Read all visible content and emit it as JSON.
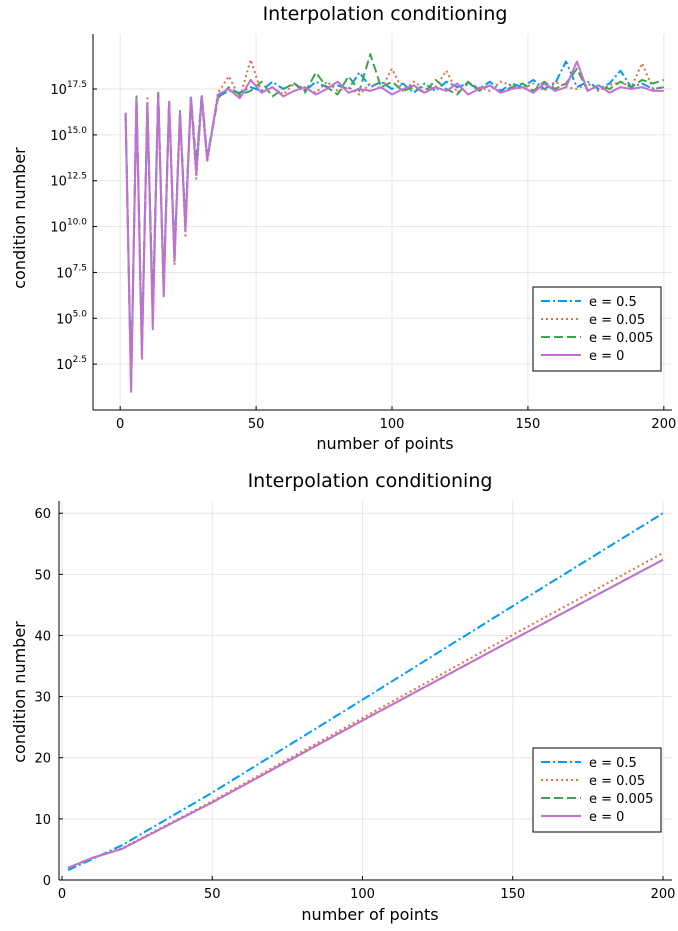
{
  "colors": {
    "e_0.5": "#009af9",
    "e_0.05": "#e26f46",
    "e_0.005": "#3ea44e",
    "e_0": "#c271d2"
  },
  "chart_data": [
    {
      "type": "line",
      "title": "Interpolation conditioning",
      "xlabel": "number of points",
      "ylabel": "condition number",
      "yscale": "log10",
      "xlim": [
        -10,
        203
      ],
      "ylim_log10": [
        0,
        20.5
      ],
      "xticks": [
        "0",
        "50",
        "100",
        "150",
        "200"
      ],
      "yticks": [
        {
          "base": "10",
          "exp": "2.5",
          "value": 2.5
        },
        {
          "base": "10",
          "exp": "5.0",
          "value": 5.0
        },
        {
          "base": "10",
          "exp": "7.5",
          "value": 7.5
        },
        {
          "base": "10",
          "exp": "10.0",
          "value": 10.0
        },
        {
          "base": "10",
          "exp": "12.5",
          "value": 12.5
        },
        {
          "base": "10",
          "exp": "15.0",
          "value": 15.0
        },
        {
          "base": "10",
          "exp": "17.5",
          "value": 17.5
        }
      ],
      "grid": true,
      "legend_position": "bottom-right",
      "series": [
        {
          "name": "e = 0.5",
          "style": "dashdot",
          "color_key": "e_0.5",
          "x": [
            2,
            4,
            6,
            8,
            10,
            12,
            14,
            16,
            18,
            20,
            22,
            24,
            26,
            28,
            30,
            32,
            36,
            40,
            44,
            48,
            52,
            56,
            60,
            64,
            68,
            72,
            76,
            80,
            84,
            88,
            92,
            96,
            100,
            104,
            108,
            112,
            116,
            120,
            124,
            128,
            132,
            136,
            140,
            144,
            148,
            152,
            156,
            160,
            164,
            168,
            172,
            176,
            180,
            184,
            188,
            192,
            196,
            200
          ],
          "y": [
            16.2,
            1.5,
            17.1,
            3.5,
            16.6,
            5.5,
            17.3,
            6.8,
            16.8,
            8.5,
            16.2,
            10.2,
            17.1,
            13.4,
            17.2,
            13.8,
            17.1,
            17.4,
            17.3,
            17.6,
            17.4,
            17.9,
            17.5,
            17.8,
            17.4,
            17.9,
            17.6,
            17.7,
            17.5,
            18.4,
            17.6,
            17.9,
            17.5,
            17.8,
            17.3,
            17.8,
            17.4,
            17.9,
            17.6,
            17.8,
            17.5,
            17.9,
            17.4,
            17.8,
            17.6,
            18.0,
            17.5,
            17.8,
            19.0,
            17.6,
            17.9,
            17.5,
            17.8,
            18.5,
            17.6,
            17.8,
            17.5,
            17.6
          ]
        },
        {
          "name": "e = 0.05",
          "style": "dotted",
          "color_key": "e_0.05",
          "x": [
            2,
            4,
            6,
            8,
            10,
            12,
            14,
            16,
            18,
            20,
            22,
            24,
            26,
            28,
            30,
            32,
            36,
            40,
            44,
            48,
            52,
            56,
            60,
            64,
            68,
            72,
            76,
            80,
            84,
            88,
            92,
            96,
            100,
            104,
            108,
            112,
            116,
            120,
            124,
            128,
            132,
            136,
            140,
            144,
            148,
            152,
            156,
            160,
            164,
            168,
            172,
            176,
            180,
            184,
            188,
            192,
            196,
            200
          ],
          "y": [
            16.0,
            1.0,
            16.9,
            2.8,
            17.0,
            4.8,
            17.2,
            6.3,
            16.7,
            7.9,
            16.1,
            9.5,
            16.9,
            12.6,
            16.9,
            13.5,
            17.3,
            18.2,
            17.0,
            19.1,
            17.3,
            17.6,
            17.2,
            17.8,
            17.5,
            17.3,
            17.9,
            17.4,
            17.6,
            17.2,
            17.8,
            17.5,
            18.6,
            17.4,
            17.9,
            17.5,
            17.6,
            18.5,
            17.3,
            17.8,
            17.6,
            17.4,
            17.9,
            17.7,
            17.5,
            17.8,
            17.4,
            17.9,
            17.6,
            17.5,
            17.8,
            17.4,
            17.7,
            17.9,
            17.6,
            18.9,
            17.5,
            17.6
          ]
        },
        {
          "name": "e = 0.005",
          "style": "dashed",
          "color_key": "e_0.005",
          "x": [
            2,
            4,
            6,
            8,
            10,
            12,
            14,
            16,
            18,
            20,
            22,
            24,
            26,
            28,
            30,
            32,
            36,
            40,
            44,
            48,
            52,
            56,
            60,
            64,
            68,
            72,
            76,
            80,
            84,
            88,
            92,
            96,
            100,
            104,
            108,
            112,
            116,
            120,
            124,
            128,
            132,
            136,
            140,
            144,
            148,
            152,
            156,
            160,
            164,
            168,
            172,
            176,
            180,
            184,
            188,
            192,
            196,
            200
          ],
          "y": [
            16.2,
            1.2,
            17.1,
            3.2,
            16.6,
            5.2,
            17.3,
            6.5,
            16.8,
            8.2,
            16.3,
            9.9,
            17.1,
            13.2,
            17.1,
            13.7,
            17.0,
            17.6,
            17.2,
            17.4,
            17.9,
            17.1,
            17.5,
            17.8,
            17.3,
            18.4,
            17.6,
            17.2,
            18.2,
            17.4,
            19.4,
            17.6,
            17.9,
            17.4,
            17.6,
            17.3,
            18.0,
            17.5,
            17.2,
            17.9,
            17.4,
            17.7,
            17.3,
            17.6,
            17.8,
            17.4,
            17.9,
            17.5,
            17.8,
            18.6,
            17.4,
            17.7,
            17.5,
            17.9,
            17.6,
            18.0,
            17.8,
            18.0
          ]
        },
        {
          "name": "e = 0",
          "style": "solid",
          "color_key": "e_0",
          "x": [
            2,
            4,
            6,
            8,
            10,
            12,
            14,
            16,
            18,
            20,
            22,
            24,
            26,
            28,
            30,
            32,
            36,
            40,
            44,
            48,
            52,
            56,
            60,
            64,
            68,
            72,
            76,
            80,
            84,
            88,
            92,
            96,
            100,
            104,
            108,
            112,
            116,
            120,
            124,
            128,
            132,
            136,
            140,
            144,
            148,
            152,
            156,
            160,
            164,
            168,
            172,
            176,
            180,
            184,
            188,
            192,
            196,
            200
          ],
          "y": [
            16.2,
            1.0,
            17.0,
            2.9,
            16.7,
            4.4,
            17.3,
            6.2,
            16.8,
            8.1,
            16.2,
            9.8,
            17.0,
            12.8,
            17.1,
            13.6,
            17.2,
            17.5,
            17.0,
            18.0,
            17.3,
            17.6,
            17.1,
            17.4,
            17.6,
            17.2,
            17.5,
            17.9,
            17.3,
            17.5,
            17.4,
            17.6,
            17.2,
            17.5,
            17.7,
            17.3,
            17.6,
            17.4,
            17.8,
            17.2,
            17.5,
            17.7,
            17.3,
            17.5,
            17.6,
            17.3,
            17.8,
            17.4,
            17.6,
            19.0,
            17.4,
            17.7,
            17.3,
            17.6,
            17.5,
            17.6,
            17.4,
            17.4
          ]
        }
      ]
    },
    {
      "type": "line",
      "title": "Interpolation conditioning",
      "xlabel": "number of points",
      "ylabel": "condition number",
      "yscale": "linear",
      "xlim": [
        -1,
        203
      ],
      "ylim": [
        0,
        62
      ],
      "xticks": [
        "0",
        "50",
        "100",
        "150",
        "200"
      ],
      "yticks": [
        "0",
        "10",
        "20",
        "30",
        "40",
        "50",
        "60"
      ],
      "grid": true,
      "legend_position": "bottom-right",
      "series": [
        {
          "name": "e = 0.5",
          "style": "dashdot",
          "color_key": "e_0.5",
          "x": [
            2,
            10,
            20,
            50,
            100,
            150,
            200
          ],
          "y": [
            1.6,
            3.4,
            5.7,
            14.3,
            29.5,
            44.8,
            60.0
          ]
        },
        {
          "name": "e = 0.05",
          "style": "dotted",
          "color_key": "e_0.05",
          "x": [
            2,
            10,
            20,
            50,
            100,
            150,
            200
          ],
          "y": [
            1.9,
            3.6,
            5.2,
            12.9,
            26.5,
            40.1,
            53.5
          ]
        },
        {
          "name": "e = 0.005",
          "style": "dashed",
          "color_key": "e_0.005",
          "x": [
            2,
            10,
            20,
            50,
            100,
            150,
            200
          ],
          "y": [
            2.0,
            3.6,
            5.1,
            12.7,
            26.1,
            39.3,
            52.4
          ]
        },
        {
          "name": "e = 0",
          "style": "solid",
          "color_key": "e_0",
          "x": [
            2,
            10,
            20,
            50,
            100,
            150,
            200
          ],
          "y": [
            2.0,
            3.6,
            5.1,
            12.7,
            26.1,
            39.3,
            52.4
          ]
        }
      ]
    }
  ]
}
